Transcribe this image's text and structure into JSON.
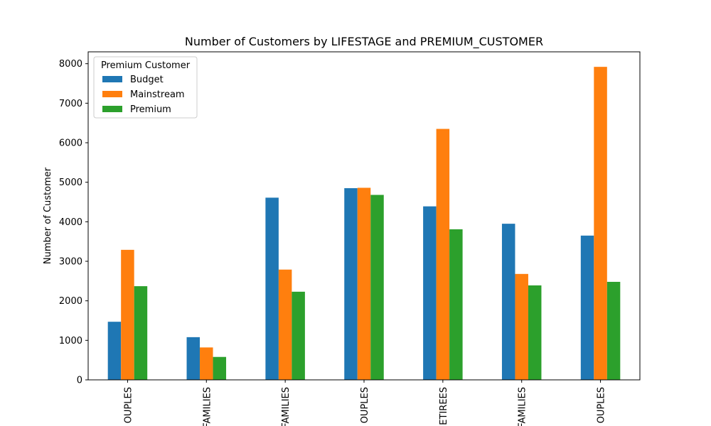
{
  "chart_data": {
    "type": "bar",
    "title": "Number of Customers by LIFESTAGE and PREMIUM_CUSTOMER",
    "xlabel": "",
    "ylabel": "Number of Customer",
    "ylim": [
      0,
      8300
    ],
    "yticks": [
      0,
      1000,
      2000,
      3000,
      4000,
      5000,
      6000,
      7000,
      8000
    ],
    "categories": [
      "OUPLES",
      "FAMILIES",
      "FAMILIES",
      "OUPLES",
      "ETIREES",
      "FAMILIES",
      "OUPLES"
    ],
    "series": [
      {
        "name": "Budget",
        "color": "#1f77b4",
        "values": [
          1470,
          1080,
          4610,
          4850,
          4390,
          3950,
          3650
        ]
      },
      {
        "name": "Mainstream",
        "color": "#ff7f0e",
        "values": [
          3290,
          820,
          2790,
          4860,
          6350,
          2680,
          7920
        ]
      },
      {
        "name": "Premium",
        "color": "#2ca02c",
        "values": [
          2370,
          580,
          2230,
          4680,
          3810,
          2390,
          2480
        ]
      }
    ],
    "legend": {
      "title": "Premium Customer",
      "placement": "top-left"
    },
    "grid": false
  }
}
